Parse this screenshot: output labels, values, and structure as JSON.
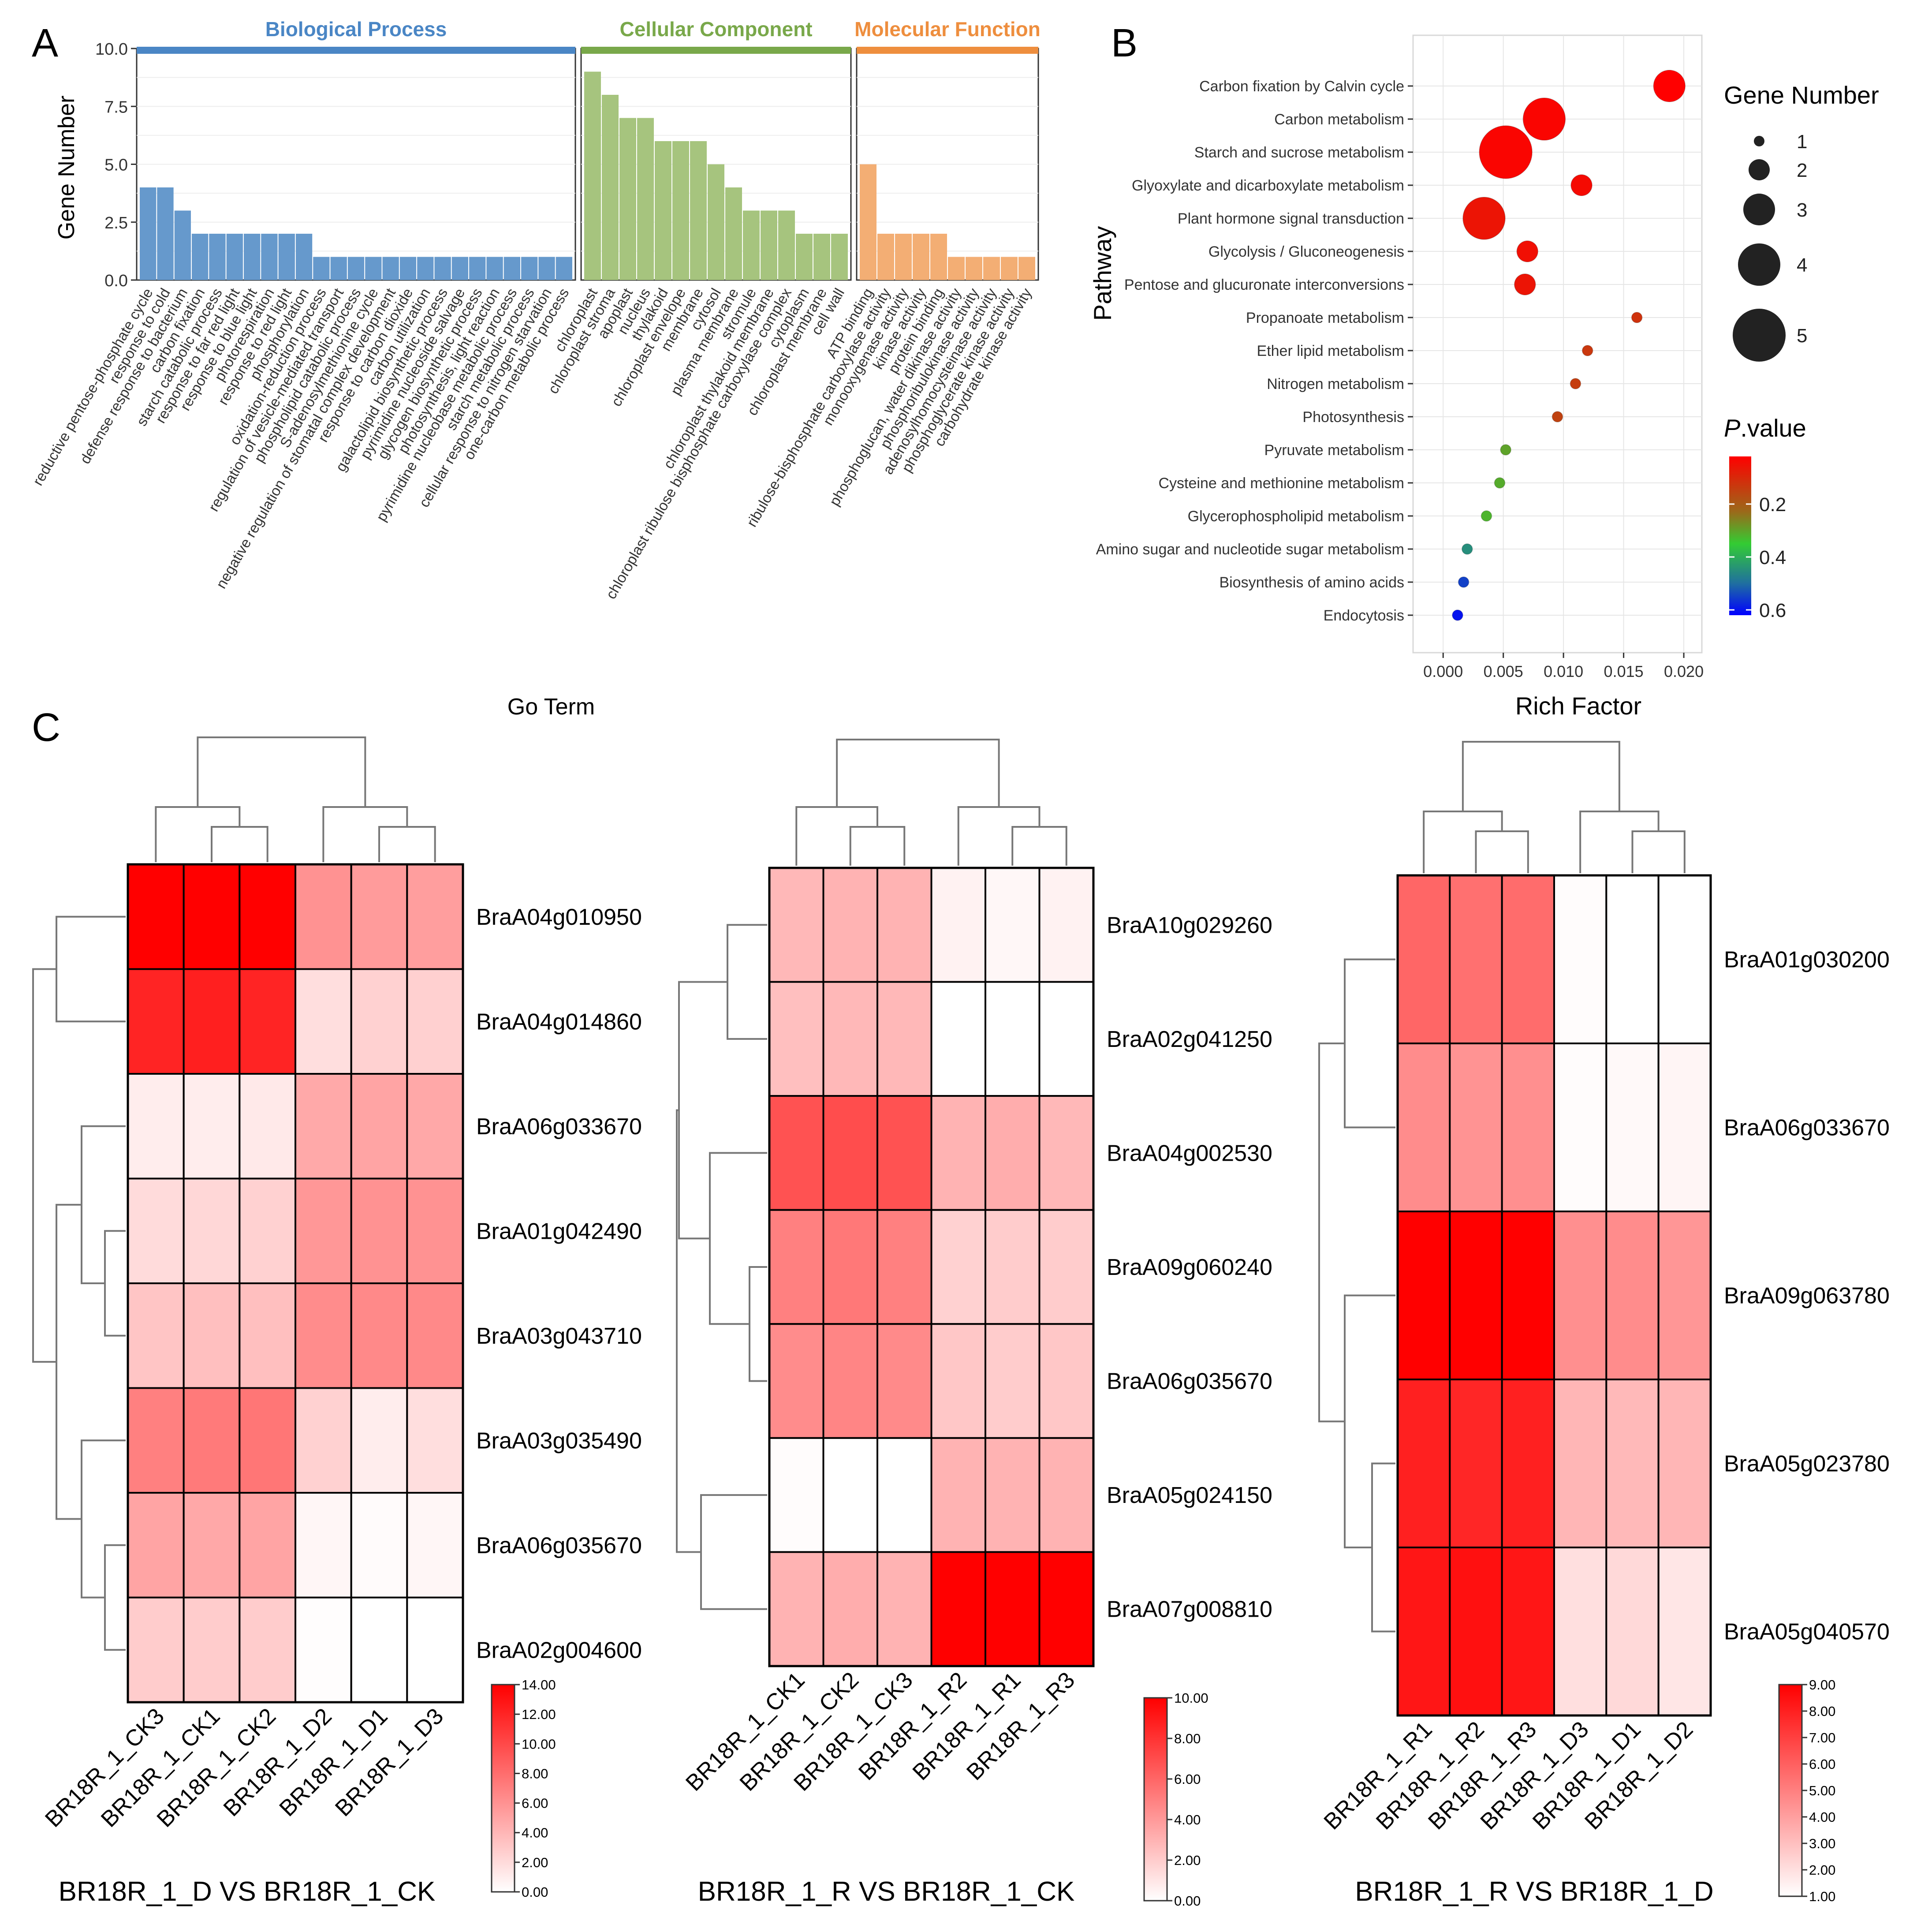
{
  "panel_labels": {
    "a": "A",
    "b": "B",
    "c": "C"
  },
  "colors": {
    "bp": "#6699CC",
    "bp_header": "#4A86C5",
    "cc": "#A6C47E",
    "cc_header": "#79A84A",
    "mf": "#F3AE74",
    "mf_header": "#EE8E3E",
    "heat_low": "#ffffff",
    "heat_high": "#ff0000"
  },
  "chart_data": [
    {
      "id": "go_bar",
      "type": "bar",
      "ylabel": "Gene Number",
      "xlabel": "Go Term",
      "ylim": [
        0,
        10
      ],
      "yticks": [
        "0.0",
        "2.5",
        "5.0",
        "7.5",
        "10.0"
      ],
      "facets": [
        {
          "title": "Biological Process",
          "color_key": "bp",
          "categories": [
            "reductive pentose-phosphate cycle",
            "response to cold",
            "defense response to bacterium",
            "carbon fixation",
            "starch catabolic process",
            "response to far red light",
            "response to blue light",
            "photorespiration",
            "response to red light",
            "phosphorylation",
            "oxidation-reduction process",
            "regulation of vesicle-mediated transport",
            "phospholipid catabolic process",
            "S-adenosylmethionine cycle",
            "negative regulation of stomatal complex development",
            "response to carbon dioxide",
            "carbon utilization",
            "galactolipid biosynthetic process",
            "pyrimidine nucleoside salvage",
            "glycogen biosynthetic process",
            "photosynthesis, light reaction",
            "pyrimidine nucleobase metabolic process",
            "starch metabolic process",
            "cellular response to nitrogen starvation",
            "one-carbon metabolic process"
          ],
          "values": [
            4,
            4,
            3,
            2,
            2,
            2,
            2,
            2,
            2,
            2,
            1,
            1,
            1,
            1,
            1,
            1,
            1,
            1,
            1,
            1,
            1,
            1,
            1,
            1,
            1
          ]
        },
        {
          "title": "Cellular Component",
          "color_key": "cc",
          "categories": [
            "chloroplast",
            "chloroplast stroma",
            "apoplast",
            "nucleus",
            "thylakoid",
            "chloroplast envelope",
            "membrane",
            "cytosol",
            "plasma membrane",
            "stromule",
            "chloroplast thylakoid membrane",
            "chloroplast ribulose bisphosphate carboxylase complex",
            "cytoplasm",
            "chloroplast membrane",
            "cell wall"
          ],
          "values": [
            9,
            8,
            7,
            7,
            6,
            6,
            6,
            5,
            4,
            3,
            3,
            3,
            2,
            2,
            2
          ]
        },
        {
          "title": "Molecular Function",
          "color_key": "mf",
          "categories": [
            "ATP binding",
            "ribulose-bisphosphate carboxylase activity",
            "monooxygenase activity",
            "kinase activity",
            "protein binding",
            "phosphoglucan, water dikinase activity",
            "phosphoribulokinase activity",
            "adenosylhomocysteinase activity",
            "phosphoglycerate kinase activity",
            "carbohydrate kinase activity"
          ],
          "values": [
            5,
            2,
            2,
            2,
            2,
            1,
            1,
            1,
            1,
            1
          ]
        }
      ]
    },
    {
      "id": "kegg_bubble",
      "type": "scatter",
      "xlabel": "Rich Factor",
      "ylabel": "Pathway",
      "xlim": [
        -0.0025,
        0.0215
      ],
      "xticks": [
        0.0,
        0.005,
        0.01,
        0.015,
        0.02
      ],
      "xtick_labels": [
        "0.000",
        "0.005",
        "0.010",
        "0.015",
        "0.020"
      ],
      "size_legend_title": "Gene Number",
      "size_legend": [
        1,
        2,
        3,
        4,
        5
      ],
      "color_legend_title_italic": "P",
      "color_legend_title_rest": ".value",
      "color_legend_ticks": [
        0.2,
        0.4,
        0.6
      ],
      "color_legend_tick_labels": [
        "0.2",
        "0.4",
        "0.6"
      ],
      "pvalue_range": [
        0.02,
        0.62
      ],
      "pathways": [
        "Carbon fixation by Calvin cycle",
        "Carbon metabolism",
        "Starch and sucrose metabolism",
        "Glyoxylate and dicarboxylate metabolism",
        "Plant hormone signal transduction",
        "Glycolysis / Gluconeogenesis",
        "Pentose and glucuronate interconversions",
        "Propanoate metabolism",
        "Ether lipid metabolism",
        "Nitrogen metabolism",
        "Photosynthesis",
        "Pyruvate metabolism",
        "Cysteine and methionine metabolism",
        "Glycerophospholipid metabolism",
        "Amino sugar and nucleotide sugar metabolism",
        "Biosynthesis of amino acids",
        "Endocytosis"
      ],
      "rich_factor": [
        0.0188,
        0.0084,
        0.0052,
        0.0115,
        0.0034,
        0.007,
        0.0068,
        0.0161,
        0.012,
        0.011,
        0.0095,
        0.0052,
        0.0047,
        0.0036,
        0.002,
        0.0017,
        0.0012
      ],
      "gene_number": [
        3,
        4,
        5,
        2,
        4,
        2,
        2,
        1,
        1,
        1,
        1,
        1,
        1,
        1,
        1,
        1,
        1
      ],
      "pvalue": [
        0.02,
        0.03,
        0.03,
        0.04,
        0.06,
        0.05,
        0.06,
        0.12,
        0.13,
        0.14,
        0.15,
        0.3,
        0.31,
        0.32,
        0.45,
        0.55,
        0.6
      ]
    },
    {
      "id": "heat1",
      "type": "heatmap",
      "title": "BR18R_1_D VS BR18R_1_CK",
      "columns": [
        "BR18R_1_CK3",
        "BR18R_1_CK1",
        "BR18R_1_CK2",
        "BR18R_1_D2",
        "BR18R_1_D1",
        "BR18R_1_D3"
      ],
      "rows": [
        "BraA04g010950",
        "BraA04g014860",
        "BraA06g033670",
        "BraA01g042490",
        "BraA03g043710",
        "BraA03g035490",
        "BraA06g035670",
        "BraA02g004600"
      ],
      "values": [
        [
          14.0,
          14.0,
          14.0,
          6.0,
          5.5,
          5.3
        ],
        [
          12.0,
          12.3,
          12.0,
          1.8,
          2.5,
          2.6
        ],
        [
          1.0,
          1.0,
          1.2,
          4.7,
          5.0,
          4.8
        ],
        [
          2.0,
          2.2,
          2.5,
          5.7,
          6.0,
          6.0
        ],
        [
          3.2,
          3.5,
          3.5,
          6.3,
          6.5,
          6.5
        ],
        [
          7.0,
          7.3,
          7.5,
          2.5,
          1.0,
          1.8
        ],
        [
          5.0,
          4.8,
          5.0,
          0.5,
          0.2,
          0.5
        ],
        [
          2.8,
          2.8,
          2.8,
          0.1,
          0.0,
          0.0
        ]
      ],
      "scale_min": 0,
      "scale_max": 14,
      "legend_ticks": [
        "0.00",
        "2.00",
        "4.00",
        "6.00",
        "8.00",
        "10.00",
        "12.00",
        "14.00"
      ]
    },
    {
      "id": "heat2",
      "type": "heatmap",
      "title": "BR18R_1_R VS BR18R_1_CK",
      "columns": [
        "BR18R_1_CK1",
        "BR18R_1_CK2",
        "BR18R_1_CK3",
        "BR18R_1_R2",
        "BR18R_1_R1",
        "BR18R_1_R3"
      ],
      "rows": [
        "BraA10g029260",
        "BraA02g041250",
        "BraA04g002530",
        "BraA09g060240",
        "BraA06g035670",
        "BraA05g024150",
        "BraA07g008810"
      ],
      "values": [
        [
          2.8,
          3.0,
          3.0,
          0.5,
          0.3,
          0.5
        ],
        [
          2.5,
          2.8,
          2.8,
          0.0,
          0.0,
          0.0
        ],
        [
          6.8,
          7.0,
          6.8,
          3.0,
          3.2,
          2.8
        ],
        [
          5.0,
          5.3,
          5.0,
          1.8,
          2.0,
          2.0
        ],
        [
          4.5,
          4.8,
          4.6,
          2.2,
          2.0,
          2.2
        ],
        [
          0.1,
          0.0,
          0.0,
          3.0,
          3.0,
          3.0
        ],
        [
          3.0,
          3.2,
          3.0,
          10.0,
          10.0,
          10.0
        ]
      ],
      "scale_min": 0,
      "scale_max": 10,
      "legend_ticks": [
        "0.00",
        "2.00",
        "4.00",
        "6.00",
        "8.00",
        "10.00"
      ]
    },
    {
      "id": "heat3",
      "type": "heatmap",
      "title": "BR18R_1_R VS BR18R_1_D",
      "columns": [
        "BR18R_1_R1",
        "BR18R_1_R2",
        "BR18R_1_R3",
        "BR18R_1_D3",
        "BR18R_1_D1",
        "BR18R_1_D2"
      ],
      "rows": [
        "BraA01g030200",
        "BraA06g033670",
        "BraA09g063780",
        "BraA05g023780",
        "BraA05g040570"
      ],
      "values": [
        [
          5.8,
          5.5,
          5.6,
          1.1,
          1.0,
          1.0
        ],
        [
          4.6,
          4.4,
          4.5,
          1.1,
          1.2,
          1.3
        ],
        [
          9.0,
          9.0,
          9.0,
          4.5,
          4.6,
          4.3
        ],
        [
          8.0,
          7.8,
          8.0,
          3.3,
          3.2,
          3.3
        ],
        [
          8.3,
          8.5,
          8.3,
          2.0,
          2.2,
          1.8
        ]
      ],
      "scale_min": 1,
      "scale_max": 9,
      "legend_ticks": [
        "1.00",
        "2.00",
        "3.00",
        "4.00",
        "5.00",
        "6.00",
        "7.00",
        "8.00",
        "9.00"
      ]
    }
  ]
}
